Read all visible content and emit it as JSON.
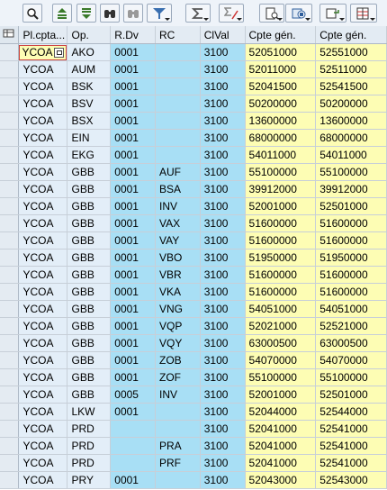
{
  "toolbar": {
    "buttons": [
      {
        "name": "details-button",
        "icon": "magnifier-icon"
      },
      {
        "name": "sort-ascending-button",
        "icon": "sort-ascending-icon"
      },
      {
        "name": "sort-descending-button",
        "icon": "sort-descending-icon"
      },
      {
        "name": "find-button",
        "icon": "binoculars-icon"
      },
      {
        "name": "find-next-button",
        "icon": "binoculars-next-icon"
      },
      {
        "name": "filter-button",
        "icon": "filter-icon"
      },
      {
        "name": "total-button",
        "icon": "sigma-icon"
      },
      {
        "name": "subtotal-button",
        "icon": "subtotal-icon"
      },
      {
        "name": "print-preview-button",
        "icon": "print-preview-icon"
      },
      {
        "name": "export-button",
        "icon": "export-icon"
      },
      {
        "name": "layout-button",
        "icon": "layout-icon"
      }
    ]
  },
  "columns": [
    "Pl.cpta...",
    "Op.",
    "R.Dv",
    "RC",
    "ClVal",
    "Cpte gén.",
    "Cpte gén."
  ],
  "rows": [
    [
      "YCOA",
      "AKO",
      "0001",
      "",
      "3100",
      "52051000",
      "52551000"
    ],
    [
      "YCOA",
      "AUM",
      "0001",
      "",
      "3100",
      "52011000",
      "52511000"
    ],
    [
      "YCOA",
      "BSK",
      "0001",
      "",
      "3100",
      "52041500",
      "52541500"
    ],
    [
      "YCOA",
      "BSV",
      "0001",
      "",
      "3100",
      "50200000",
      "50200000"
    ],
    [
      "YCOA",
      "BSX",
      "0001",
      "",
      "3100",
      "13600000",
      "13600000"
    ],
    [
      "YCOA",
      "EIN",
      "0001",
      "",
      "3100",
      "68000000",
      "68000000"
    ],
    [
      "YCOA",
      "EKG",
      "0001",
      "",
      "3100",
      "54011000",
      "54011000"
    ],
    [
      "YCOA",
      "GBB",
      "0001",
      "AUF",
      "3100",
      "55100000",
      "55100000"
    ],
    [
      "YCOA",
      "GBB",
      "0001",
      "BSA",
      "3100",
      "39912000",
      "39912000"
    ],
    [
      "YCOA",
      "GBB",
      "0001",
      "INV",
      "3100",
      "52001000",
      "52501000"
    ],
    [
      "YCOA",
      "GBB",
      "0001",
      "VAX",
      "3100",
      "51600000",
      "51600000"
    ],
    [
      "YCOA",
      "GBB",
      "0001",
      "VAY",
      "3100",
      "51600000",
      "51600000"
    ],
    [
      "YCOA",
      "GBB",
      "0001",
      "VBO",
      "3100",
      "51950000",
      "51950000"
    ],
    [
      "YCOA",
      "GBB",
      "0001",
      "VBR",
      "3100",
      "51600000",
      "51600000"
    ],
    [
      "YCOA",
      "GBB",
      "0001",
      "VKA",
      "3100",
      "51600000",
      "51600000"
    ],
    [
      "YCOA",
      "GBB",
      "0001",
      "VNG",
      "3100",
      "54051000",
      "54051000"
    ],
    [
      "YCOA",
      "GBB",
      "0001",
      "VQP",
      "3100",
      "52021000",
      "52521000"
    ],
    [
      "YCOA",
      "GBB",
      "0001",
      "VQY",
      "3100",
      "63000500",
      "63000500"
    ],
    [
      "YCOA",
      "GBB",
      "0001",
      "ZOB",
      "3100",
      "54070000",
      "54070000"
    ],
    [
      "YCOA",
      "GBB",
      "0001",
      "ZOF",
      "3100",
      "55100000",
      "55100000"
    ],
    [
      "YCOA",
      "GBB",
      "0005",
      "INV",
      "3100",
      "52001000",
      "52501000"
    ],
    [
      "YCOA",
      "LKW",
      "0001",
      "",
      "3100",
      "52044000",
      "52544000"
    ],
    [
      "YCOA",
      "PRD",
      "",
      "",
      "3100",
      "52041000",
      "52541000"
    ],
    [
      "YCOA",
      "PRD",
      "",
      "PRA",
      "3100",
      "52041000",
      "52541000"
    ],
    [
      "YCOA",
      "PRD",
      "",
      "PRF",
      "3100",
      "52041000",
      "52541000"
    ],
    [
      "YCOA",
      "PRY",
      "0001",
      "",
      "3100",
      "52043000",
      "52543000"
    ]
  ],
  "colors": {
    "key": "#e3eef8",
    "blue": "#a8dff5",
    "yellow": "#fdfdb4",
    "header": "#e3ebf3"
  }
}
